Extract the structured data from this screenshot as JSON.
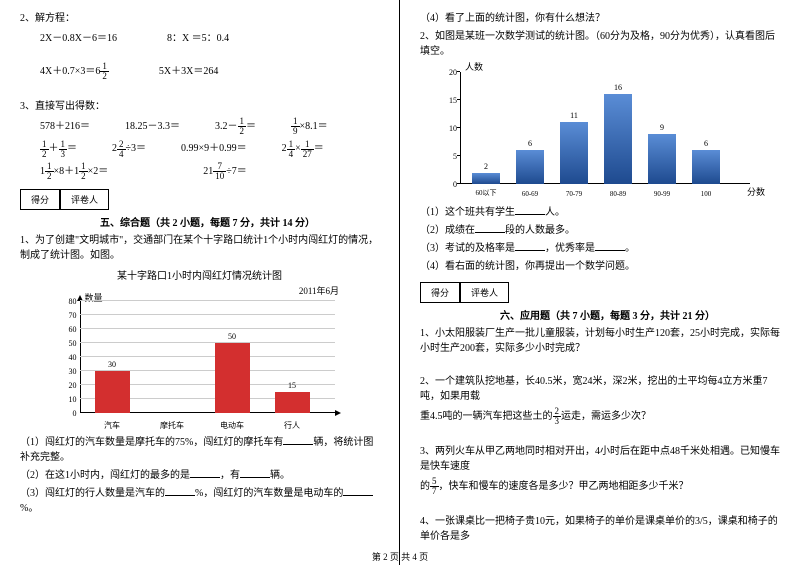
{
  "left": {
    "q2": {
      "title": "2、解方程：",
      "row1a": "2X－0.8X－6＝16",
      "row1b": "8：X ＝5：0.4",
      "row2a": "4X＋0.7×3＝6",
      "row2a_frac": {
        "n": "1",
        "d": "2"
      },
      "row2b": "5X＋3X＝264"
    },
    "q3": {
      "title": "3、直接写出得数：",
      "r1": [
        "578＋216＝",
        "18.25－3.3＝",
        "3.2－",
        "×8.1＝"
      ],
      "r1f1": {
        "n": "1",
        "d": "2"
      },
      "r1f2": {
        "n": "1",
        "d": "9"
      },
      "r2": [
        "＋",
        "÷3＝",
        "0.99×9＋0.99＝",
        "×"
      ],
      "r2f1": {
        "n": "1",
        "d": "2"
      },
      "r2f2": {
        "n": "1",
        "d": "3"
      },
      "r2f3": {
        "n": "2",
        "d": "4"
      },
      "r2f4": {
        "n": "1",
        "d": "4"
      },
      "r2f5": {
        "n": "1",
        "d": "27"
      },
      "r3a_pre": "1",
      "r3a": {
        "n": "1",
        "d": "2"
      },
      "r3a_mid": "×8＋1",
      "r3a2": {
        "n": "1",
        "d": "2"
      },
      "r3a_end": "×2＝",
      "r3b_pre": "21",
      "r3b": {
        "n": "7",
        "d": "10"
      },
      "r3b_end": "÷7＝"
    },
    "score": {
      "s1": "得分",
      "s2": "评卷人"
    },
    "section5": "五、综合题（共 2 小题，每题 7 分，共计 14 分）",
    "p1": "1、为了创建\"文明城市\"，交通部门在某个十字路口统计1个小时内闯红灯的情况，制成了统计图。如图。",
    "chart1": {
      "title": "某十字路口1小时内闯红灯情况统计图",
      "date": "2011年6月",
      "ylabel": "数量",
      "ymax": 80,
      "ystep": 10,
      "categories": [
        "汽车",
        "摩托车",
        "电动车",
        "行人"
      ],
      "values": [
        30,
        null,
        50,
        15
      ],
      "bar_color": "#d32f2f",
      "grid_color": "#cccccc"
    },
    "sub1": "（1）闯红灯的汽车数量是摩托车的75%，闯红灯的摩托车有",
    "sub1b": "辆，将统计图补充完整。",
    "sub2": "（2）在这1小时内，闯红灯的最多的是",
    "sub2b": "，有",
    "sub2c": "辆。",
    "sub3": "（3）闯红灯的行人数量是汽车的",
    "sub3b": "%，闯红灯的汽车数量是电动车的",
    "sub3c": "%。"
  },
  "right": {
    "sub4": "（4）看了上面的统计图，你有什么想法？",
    "p2": "2、如图是某班一次数学测试的统计图。（60分为及格，90分为优秀），认真看图后填空。",
    "chart2": {
      "ylabel": "人数",
      "xlabel": "分数",
      "ymax": 20,
      "ystep": 5,
      "categories": [
        "60以下",
        "60-69",
        "70-79",
        "80-89",
        "90-99",
        "100"
      ],
      "values": [
        2,
        6,
        11,
        16,
        9,
        6
      ],
      "bar_color": "#2e5fb0",
      "fill_gradient_top": "#5a8dd6",
      "fill_gradient_bot": "#1e4a8f"
    },
    "s1": "（1）这个班共有学生",
    "s1b": "人。",
    "s2": "（2）成绩在",
    "s2b": "段的人数最多。",
    "s3": "（3）考试的及格率是",
    "s3b": "，优秀率是",
    "s3c": "。",
    "s4": "（4）看右面的统计图，你再提出一个数学问题。",
    "score": {
      "s1": "得分",
      "s2": "评卷人"
    },
    "section6": "六、应用题（共 7 小题，每题 3 分，共计 21 分）",
    "ap1": "1、小太阳服装厂生产一批儿童服装，计划每小时生产120套，25小时完成，实际每小时生产200套，实际多少小时完成？",
    "ap2a": "2、一个建筑队挖地基，长40.5米，宽24米，深2米，挖出的土平均每4立方米重7吨，如果用载",
    "ap2b": "重4.5吨的一辆汽车把这些土的",
    "ap2f": {
      "n": "2",
      "d": "3"
    },
    "ap2c": "运走，需运多少次？",
    "ap3a": "3、两列火车从甲乙两地同时相对开出，4小时后在距中点48千米处相遇。已知慢车是快车速度",
    "ap3b": "的",
    "ap3f": {
      "n": "5",
      "d": "7"
    },
    "ap3c": "，快车和慢车的速度各是多少？甲乙两地相距多少千米？",
    "ap4": "4、一张课桌比一把椅子贵10元，如果椅子的单价是课桌单价的3/5，课桌和椅子的单价各是多"
  },
  "footer": "第 2 页 共 4 页"
}
